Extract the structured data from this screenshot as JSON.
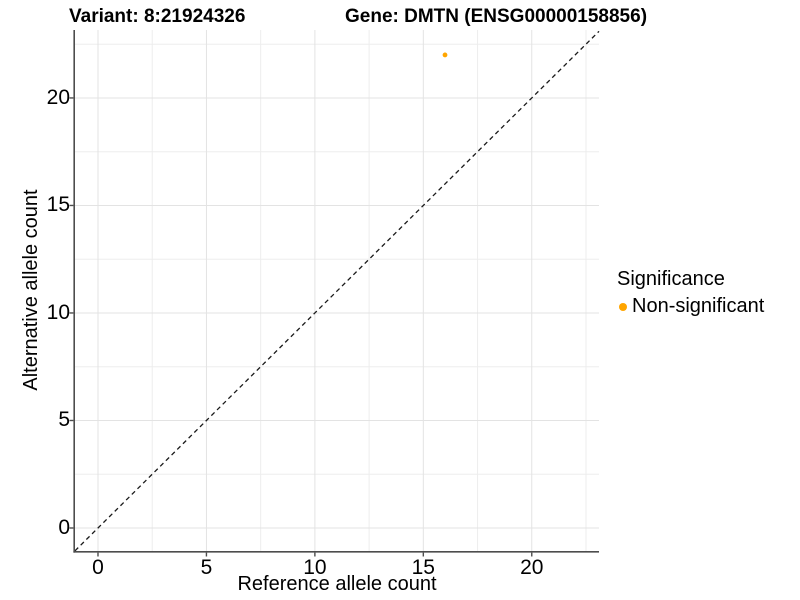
{
  "chart_data": {
    "type": "scatter",
    "title_left": "Variant: 8:21924326",
    "title_right": "Gene: DMTN (ENSG00000158856)",
    "xlabel": "Reference allele count",
    "ylabel": "Alternative allele count",
    "xlim": [
      -1.06,
      23.1
    ],
    "ylim": [
      -1.07,
      23.16
    ],
    "x_ticks": [
      0,
      5,
      10,
      15,
      20
    ],
    "y_ticks": [
      0,
      5,
      10,
      15,
      20
    ],
    "x_minor_gridlines": [
      2.5,
      7.5,
      12.5,
      17.5,
      22.5
    ],
    "y_minor_gridlines": [
      2.5,
      7.5,
      12.5,
      17.5,
      22.5
    ],
    "grid": true,
    "reference_line": {
      "type": "identity",
      "style": "dashed"
    },
    "series": [
      {
        "name": "Non-significant",
        "color": "#FFA500",
        "points": [
          {
            "x": 16,
            "y": 22
          }
        ]
      }
    ],
    "legend": {
      "position": "right",
      "title": "Significance",
      "items": [
        {
          "label": "Non-significant",
          "color": "#FFA500"
        }
      ]
    }
  },
  "colors": {
    "background": "#FFFFFF",
    "grid_major": "#E3E3E3",
    "grid_minor": "#EDEDED",
    "axis_line": "#4D4D4D",
    "reference_line": "#1A1A1A",
    "text": "#000000"
  }
}
